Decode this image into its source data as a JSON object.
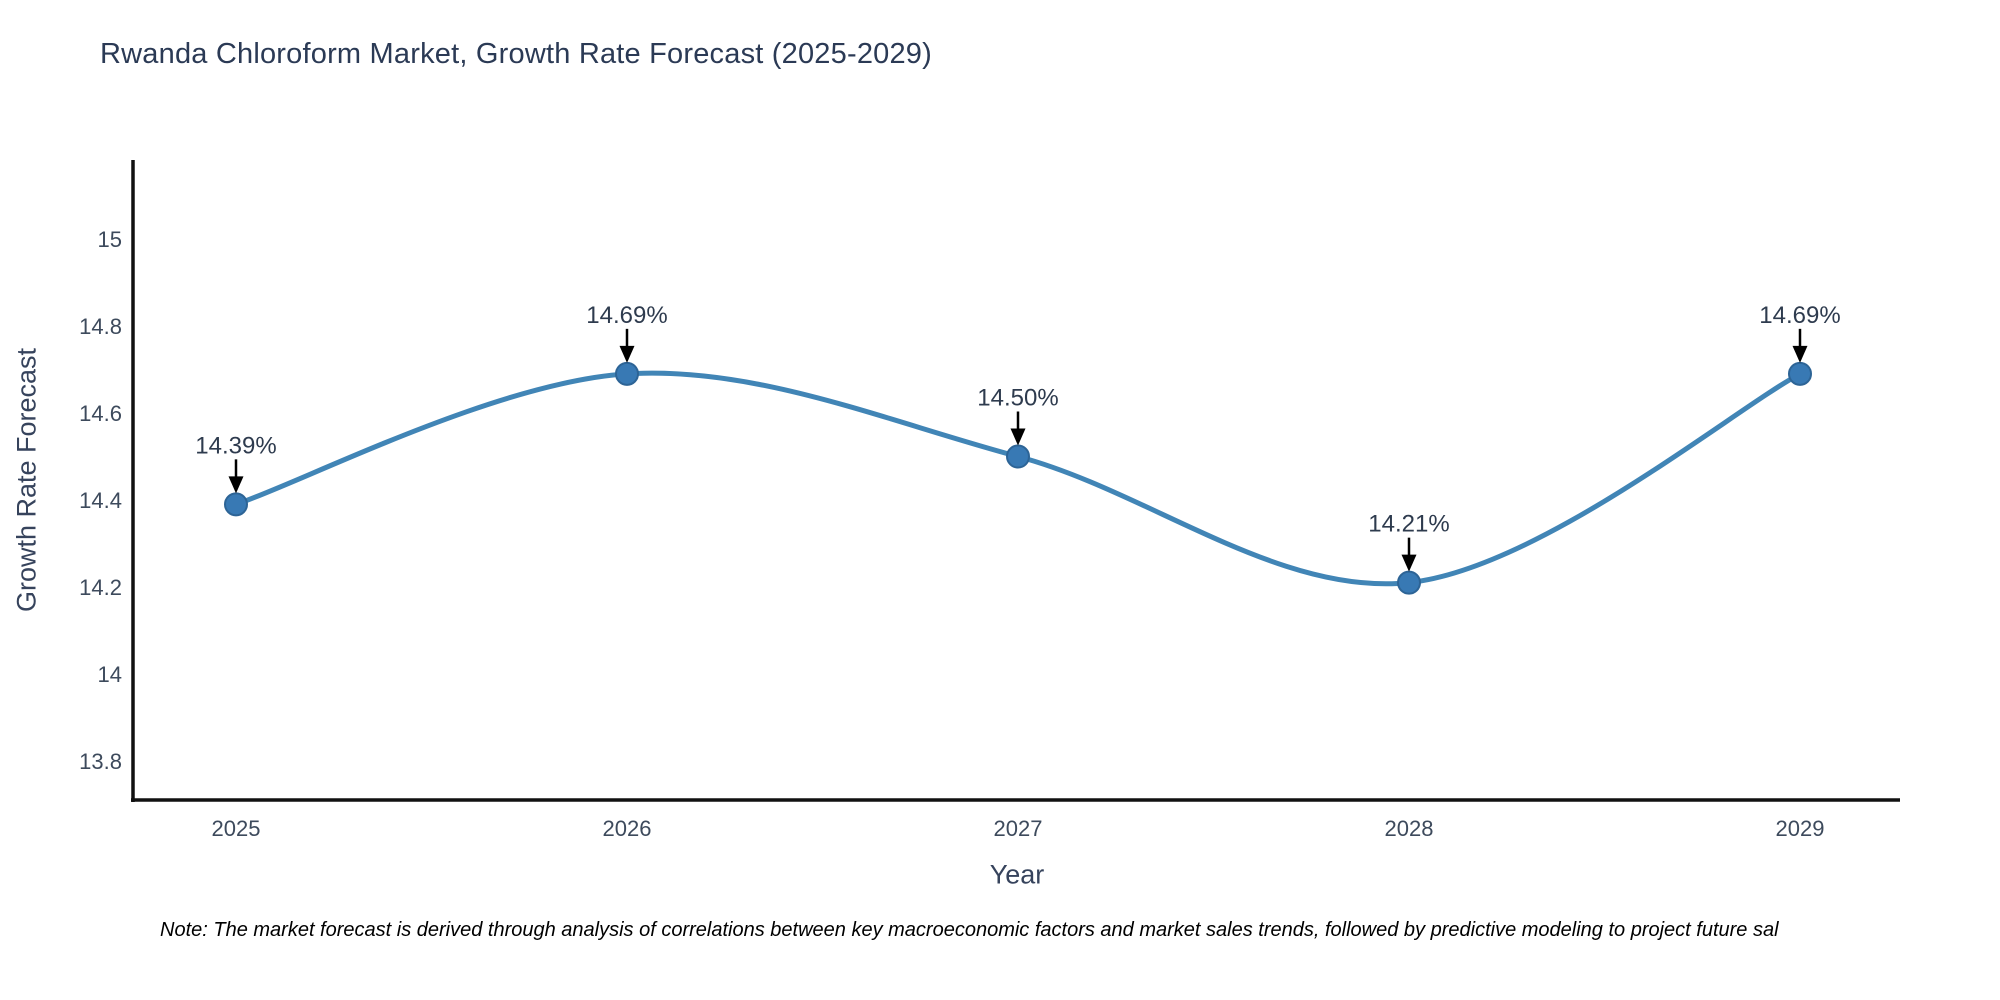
{
  "page": {
    "background": "#ffffff"
  },
  "chart_data": {
    "type": "line",
    "title": "Rwanda Chloroform Market, Growth Rate Forecast (2025-2029)",
    "xlabel": "Year",
    "ylabel": "Growth Rate Forecast",
    "x": [
      2025,
      2026,
      2027,
      2028,
      2029
    ],
    "series": [
      {
        "name": "Growth Rate Forecast",
        "values": [
          14.39,
          14.69,
          14.5,
          14.21,
          14.69
        ]
      }
    ],
    "point_labels": [
      "14.39%",
      "14.69%",
      "14.50%",
      "14.21%",
      "14.69%"
    ],
    "xtick_labels": [
      "2025",
      "2026",
      "2027",
      "2028",
      "2029"
    ],
    "ytick_values": [
      13.8,
      14,
      14.2,
      14.4,
      14.6,
      14.8,
      15
    ],
    "ytick_labels": [
      "13.8",
      "14",
      "14.2",
      "14.4",
      "14.6",
      "14.8",
      "15"
    ],
    "ylim": [
      13.7,
      15.18
    ],
    "grid": false,
    "legend_position": "none",
    "line_shape": "spline",
    "marker": "circle",
    "annotations_have_arrows": true,
    "colors": {
      "line": "#4185b6",
      "marker_fill": "#3879b4",
      "marker_edge": "#2d6496",
      "annotation_text": "#2e3b4e",
      "annotation_arrow": "#000000",
      "spine": "#111111",
      "title_text": "#2b3a55",
      "axis_text": "#36435c",
      "tick_text": "#3d4a5c"
    }
  },
  "note": {
    "text": "Note: The market forecast is derived through analysis of correlations between key macroeconomic factors and market sales trends, followed by predictive modeling to project future sal"
  }
}
